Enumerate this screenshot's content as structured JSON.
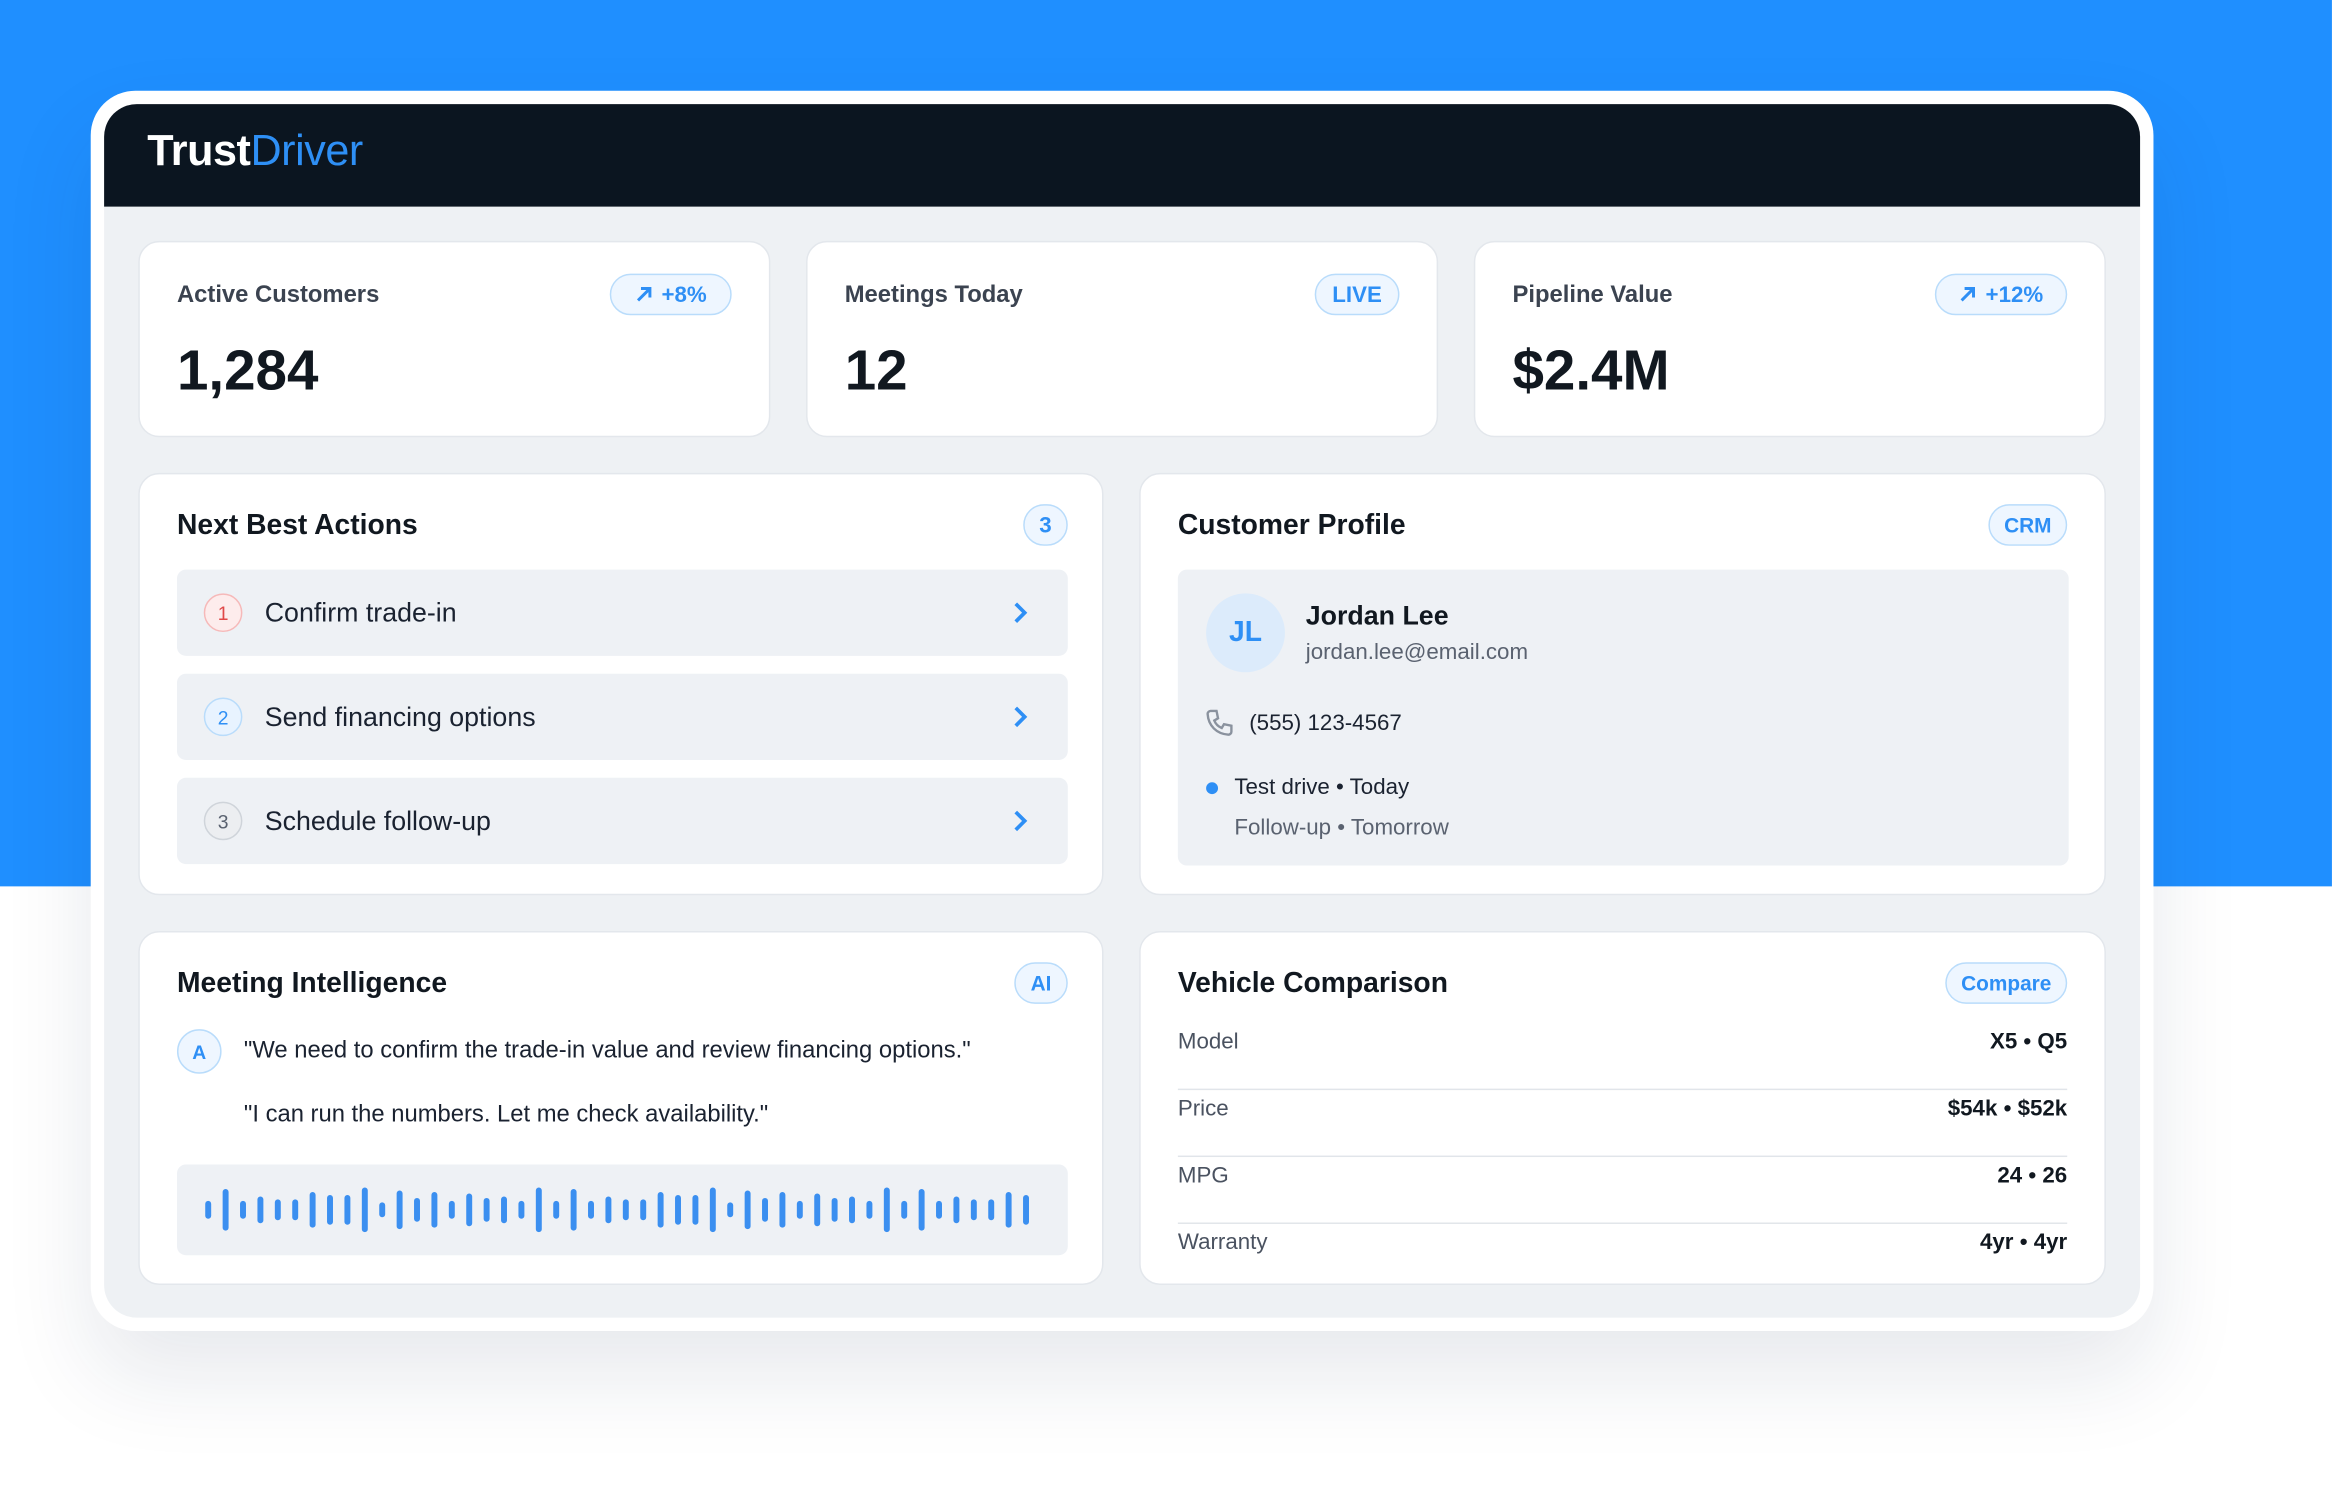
{
  "header": {
    "brand_primary": "Trust",
    "brand_accent": "Driver"
  },
  "kpis": [
    {
      "label": "Active Customers",
      "badge": "+8%",
      "value": "1,284"
    },
    {
      "label": "Meetings Today",
      "badge": "LIVE",
      "value": "12"
    },
    {
      "label": "Pipeline Value",
      "badge": "+12%",
      "value": "$2.4M"
    }
  ],
  "next_best_actions": {
    "title": "Next Best Actions",
    "count": "3",
    "items": [
      {
        "number": "1",
        "label": "Confirm trade-in"
      },
      {
        "number": "2",
        "label": "Send financing options"
      },
      {
        "number": "3",
        "label": "Schedule follow-up"
      }
    ]
  },
  "customer_profile": {
    "title": "Customer Profile",
    "badge": "CRM",
    "initials": "JL",
    "name": "Jordan Lee",
    "email": "jordan.lee@email.com",
    "phone": "(555) 123-4567",
    "schedule": [
      "Test drive • Today",
      "Follow-up • Tomorrow"
    ]
  },
  "meeting_intelligence": {
    "title": "Meeting Intelligence",
    "badge": "AI",
    "speaker": "A",
    "transcript": [
      "\"We need to confirm the trade-in value and review financing options.\"",
      "\"I can run the numbers. Let me check availability.\""
    ]
  },
  "vehicle_comparison": {
    "title": "Vehicle Comparison",
    "badge": "Compare",
    "rows": [
      {
        "label": "Model",
        "value": "X5 • Q5"
      },
      {
        "label": "Price",
        "value": "$54k • $52k"
      },
      {
        "label": "MPG",
        "value": "24 • 26"
      },
      {
        "label": "Warranty",
        "value": "4yr • 4yr"
      }
    ]
  }
}
